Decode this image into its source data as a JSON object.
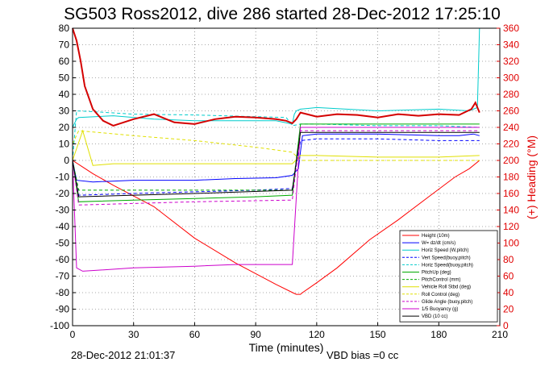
{
  "chart_data": {
    "type": "line",
    "title": "SG503 Ross2012, dive 286 started 28-Dec-2012 17:25:10",
    "xlabel": "Time (minutes)",
    "ylabel": "",
    "y2label": "(+) Heading (°M)",
    "xlim": [
      0,
      210
    ],
    "ylim": [
      -100,
      80
    ],
    "y2lim": [
      0,
      360
    ],
    "xticks": [
      "0",
      "30",
      "60",
      "90",
      "120",
      "150",
      "180",
      "210"
    ],
    "yticks": [
      "80",
      "70",
      "60",
      "50",
      "40",
      "30",
      "20",
      "10",
      "0",
      "-10",
      "-20",
      "-30",
      "-40",
      "-50",
      "-60",
      "-70",
      "-80",
      "-90",
      "-100"
    ],
    "y2ticks": [
      "360",
      "340",
      "320",
      "300",
      "280",
      "260",
      "240",
      "220",
      "200",
      "180",
      "160",
      "140",
      "120",
      "100",
      "80",
      "60",
      "40",
      "20",
      "0"
    ],
    "grid": true,
    "legend_position": "bottom-right",
    "footer_left": "28-Dec-2012 21:01:37",
    "footer_right": "VBD bias =0 cc",
    "colors": {
      "red": "#ff0000",
      "darkred": "#d40000",
      "blue": "#0000ff",
      "cyan": "#00e0e0",
      "green": "#00aa00",
      "yellow": "#e0e000",
      "magenta": "#cc00cc",
      "black": "#000000"
    },
    "series": [
      {
        "name": "Height (10m)",
        "color": "#ff0000",
        "dash": "",
        "x": [
          0,
          5,
          10,
          20,
          40,
          60,
          80,
          100,
          109,
          110,
          112,
          113,
          120,
          130,
          146,
          160,
          175,
          188,
          195,
          200
        ],
        "y": [
          0,
          -4,
          -8,
          -15,
          -28,
          -47,
          -62,
          -75,
          -80.5,
          -81,
          -81,
          -80,
          -74,
          -65,
          -48,
          -36,
          -22,
          -10,
          -5,
          0
        ]
      },
      {
        "name": "W= dz/dt (cm/s)",
        "color": "#0000ff",
        "dash": "",
        "x": [
          0,
          2,
          10,
          30,
          60,
          80,
          100,
          108,
          111,
          113,
          120,
          150,
          180,
          190,
          197,
          200
        ],
        "y": [
          0,
          -12,
          -13,
          -12,
          -12,
          -11,
          -10.5,
          -9,
          -5,
          15,
          16,
          16,
          15,
          15,
          16,
          15
        ]
      },
      {
        "name": "Horiz Speed (W,pitch)",
        "color": "#00cccc",
        "dash": "",
        "x": [
          0,
          2,
          3,
          20,
          40,
          60,
          80,
          100,
          108,
          109,
          110,
          112,
          120,
          150,
          180,
          195,
          199,
          200
        ],
        "y": [
          20,
          25,
          26,
          27,
          25,
          24,
          24,
          24,
          22,
          28,
          30,
          31,
          32,
          30,
          31,
          30,
          32,
          80
        ]
      },
      {
        "name": "Vert Speed(buoy,pitch)",
        "color": "#0000ff",
        "dash": "4,3",
        "x": [
          0,
          3,
          30,
          60,
          90,
          108,
          112,
          120,
          150,
          180,
          200
        ],
        "y": [
          0,
          -21,
          -20,
          -19,
          -18,
          -17,
          12,
          13,
          13,
          12,
          12
        ]
      },
      {
        "name": "Horiz Speed(buoy,pitch)",
        "color": "#00cccc",
        "dash": "4,3",
        "x": [
          0,
          2,
          10,
          30,
          60,
          90,
          105,
          108,
          112,
          120,
          150,
          180,
          200
        ],
        "y": [
          0,
          30,
          29.5,
          28,
          27.5,
          26.5,
          26,
          21,
          22,
          22,
          21,
          21,
          20
        ]
      },
      {
        "name": "PitchUp (deg)",
        "color": "#00aa00",
        "dash": "",
        "x": [
          0,
          3,
          30,
          60,
          90,
          108,
          112,
          200
        ],
        "y": [
          0,
          -25,
          -24,
          -23,
          -22,
          -21,
          22,
          22
        ]
      },
      {
        "name": "PitchControl (mm)",
        "color": "#00aa00",
        "dash": "4,3",
        "x": [
          0,
          3,
          60,
          108,
          112,
          200
        ],
        "y": [
          0,
          -18,
          -18,
          -18,
          20,
          20
        ]
      },
      {
        "name": "Vehicle Roll Stbd (deg)",
        "color": "#e0e000",
        "dash": "",
        "x": [
          0,
          5,
          10,
          20,
          40,
          60,
          80,
          100,
          108,
          112,
          120,
          150,
          180,
          200
        ],
        "y": [
          0,
          18,
          -3,
          -2,
          -2,
          -2,
          -2,
          -2,
          -2,
          3,
          3,
          2,
          2,
          3
        ]
      },
      {
        "name": "Roll Control (deg)",
        "color": "#e0e000",
        "dash": "4,3",
        "x": [
          0,
          3,
          30,
          60,
          90,
          108,
          112,
          200
        ],
        "y": [
          10,
          18,
          15,
          12,
          8,
          5,
          0,
          0
        ]
      },
      {
        "name": "Glide Angle (buoy,pitch)",
        "color": "#cc00cc",
        "dash": "4,3",
        "x": [
          0,
          3,
          60,
          108,
          112,
          200
        ],
        "y": [
          0,
          -27,
          -25,
          -24,
          18,
          18
        ]
      },
      {
        "name": "1/5 Buoyancy (g)",
        "color": "#cc00cc",
        "dash": "",
        "x": [
          0,
          2,
          5,
          30,
          60,
          80,
          100,
          108,
          112,
          120,
          180,
          200
        ],
        "y": [
          0,
          -65,
          -67,
          -65,
          -64,
          -63,
          -63,
          -63,
          20,
          20,
          20,
          20
        ]
      },
      {
        "name": "VBD (10 cc)",
        "color": "#000000",
        "dash": "",
        "x": [
          0,
          3,
          60,
          108,
          112,
          200
        ],
        "y": [
          0,
          -22,
          -20,
          -18,
          17,
          17
        ]
      },
      {
        "name": "Heading",
        "color": "#d40000",
        "dash": "",
        "axis": "y2",
        "legend": false,
        "x": [
          0,
          2,
          4,
          6,
          10,
          15,
          20,
          30,
          40,
          50,
          60,
          70,
          80,
          90,
          100,
          105,
          108,
          110,
          112,
          120,
          130,
          140,
          150,
          160,
          170,
          180,
          190,
          196,
          198,
          200
        ],
        "y": [
          360,
          345,
          320,
          290,
          262,
          248,
          242,
          250,
          256,
          246,
          244,
          250,
          253,
          252,
          250,
          248,
          245,
          250,
          258,
          253,
          256,
          255,
          252,
          256,
          254,
          256,
          255,
          262,
          270,
          258
        ]
      }
    ]
  }
}
